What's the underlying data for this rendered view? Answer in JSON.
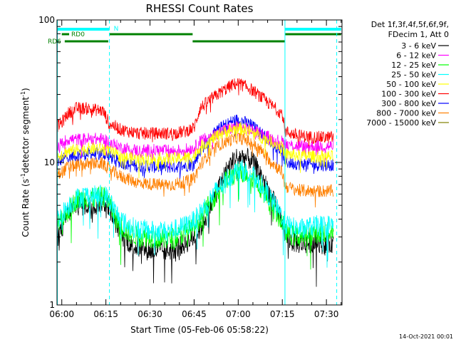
{
  "chart_data": {
    "type": "line",
    "title": "RHESSI Count Rates",
    "xlabel": "Start Time (05-Feb-06 05:58:22)",
    "ylabel": "Count Rate (s⁻¹ detector segment⁻¹)",
    "ylabel_main": "Count Rate (s",
    "ylabel_mid": "detector segment",
    "ylabel_end": ")",
    "ylabel_sup": "-1",
    "x_unit": "minutes UT",
    "xlim": [
      358.37,
      455.3
    ],
    "ylim": [
      1,
      100
    ],
    "yscale": "log",
    "x_ticks": [
      {
        "value": 360,
        "label": "06:00"
      },
      {
        "value": 375,
        "label": "06:15"
      },
      {
        "value": 390,
        "label": "06:30"
      },
      {
        "value": 405,
        "label": "06:45"
      },
      {
        "value": 420,
        "label": "07:00"
      },
      {
        "value": 435,
        "label": "07:15"
      },
      {
        "value": 450,
        "label": "07:30"
      }
    ],
    "y_ticks": [
      {
        "value": 1,
        "label": "1"
      },
      {
        "value": 10,
        "label": "10"
      },
      {
        "value": 100,
        "label": "100"
      }
    ],
    "legend": {
      "placement": "right",
      "header": [
        "Det 1f,3f,4f,5f,6f,9f,",
        "FDecim 1, Att 0"
      ]
    },
    "series": [
      {
        "name": "3 - 6 keV",
        "color": "#000000",
        "x": [
          358.5,
          360,
          362,
          365,
          368,
          371,
          374,
          376,
          378,
          381,
          384,
          387,
          390,
          393,
          396,
          399,
          402,
          405,
          407,
          410,
          413,
          416,
          419,
          421,
          424,
          427,
          430,
          433,
          435,
          436,
          438,
          441,
          444,
          447,
          450,
          452.5
        ],
        "values": [
          3.0,
          3.4,
          4.4,
          5.0,
          5.0,
          5.0,
          5.3,
          5.0,
          3.9,
          3.0,
          2.6,
          2.5,
          2.4,
          2.4,
          2.4,
          2.5,
          2.7,
          3.0,
          3.4,
          4.6,
          6.5,
          8.7,
          10.8,
          11.0,
          10.5,
          8.8,
          6.5,
          4.8,
          4.0,
          3.1,
          2.8,
          2.7,
          2.7,
          2.8,
          2.6,
          2.8
        ]
      },
      {
        "name": "6 - 12 keV",
        "color": "#ff00ff",
        "x": [
          358.5,
          362,
          366,
          370,
          374,
          376,
          380,
          386,
          392,
          398,
          402,
          405,
          407,
          410,
          414,
          418,
          420,
          424,
          428,
          432,
          435,
          436,
          440,
          446,
          452.5
        ],
        "values": [
          13.0,
          14.5,
          14.5,
          14.7,
          14.5,
          13.8,
          12.7,
          12.1,
          12.2,
          12.0,
          12.3,
          12.6,
          14.0,
          15.0,
          16.5,
          17.5,
          17.8,
          17.0,
          15.8,
          14.5,
          14.0,
          13.5,
          13.0,
          13.0,
          13.0
        ]
      },
      {
        "name": "12 - 25 keV",
        "color": "#00ff00",
        "x": [
          358.5,
          360,
          362,
          365,
          368,
          371,
          374,
          376,
          378,
          381,
          384,
          387,
          390,
          393,
          396,
          399,
          402,
          405,
          407,
          410,
          413,
          416,
          419,
          421,
          424,
          427,
          430,
          433,
          435,
          436,
          438,
          441,
          444,
          447,
          450,
          452.5
        ],
        "values": [
          3.6,
          3.9,
          4.5,
          5.5,
          5.6,
          5.6,
          5.8,
          5.3,
          4.2,
          3.4,
          3.1,
          3.0,
          3.0,
          2.9,
          2.9,
          3.0,
          3.2,
          3.5,
          4.0,
          5.0,
          6.2,
          7.5,
          8.3,
          8.6,
          8.2,
          7.0,
          5.6,
          4.4,
          3.8,
          3.3,
          3.1,
          3.0,
          3.1,
          3.2,
          3.2,
          3.4
        ]
      },
      {
        "name": "25 - 50 keV",
        "color": "#00ffff",
        "x": [
          358.5,
          360,
          362,
          365,
          368,
          371,
          374,
          376,
          378,
          381,
          384,
          387,
          390,
          393,
          396,
          399,
          402,
          405,
          407,
          410,
          413,
          416,
          419,
          421,
          424,
          427,
          430,
          433,
          435,
          436,
          438,
          441,
          444,
          447,
          450,
          452.5
        ],
        "values": [
          4.0,
          4.3,
          4.9,
          5.6,
          5.9,
          5.8,
          6.0,
          5.6,
          4.6,
          3.8,
          3.5,
          3.4,
          3.3,
          3.3,
          3.3,
          3.4,
          3.6,
          3.9,
          4.4,
          5.4,
          6.5,
          7.7,
          8.6,
          8.9,
          8.4,
          7.4,
          6.0,
          4.8,
          4.2,
          3.7,
          3.5,
          3.4,
          3.5,
          3.6,
          3.6,
          3.7
        ]
      },
      {
        "name": "50 - 100 keV",
        "color": "#ffff00",
        "x": [
          358.5,
          362,
          366,
          370,
          374,
          376,
          380,
          386,
          392,
          398,
          402,
          405,
          407,
          410,
          414,
          418,
          420,
          424,
          428,
          432,
          435,
          436,
          440,
          446,
          452.5
        ],
        "values": [
          11.0,
          12.0,
          12.3,
          12.5,
          12.5,
          12.0,
          11.0,
          10.5,
          10.6,
          10.6,
          10.8,
          11.0,
          12.8,
          14.0,
          16.0,
          17.0,
          17.5,
          16.5,
          15.0,
          13.8,
          12.8,
          11.5,
          11.2,
          11.0,
          11.0
        ]
      },
      {
        "name": "100 - 300 keV",
        "color": "#ff0000",
        "x": [
          358.5,
          360,
          362,
          365,
          368,
          371,
          374,
          376,
          380,
          386,
          392,
          398,
          402,
          405,
          407,
          410,
          414,
          418,
          420,
          424,
          428,
          432,
          435,
          436,
          440,
          446,
          452.5
        ],
        "values": [
          18.0,
          19.0,
          22.0,
          24.0,
          24.0,
          23.5,
          23.0,
          19.0,
          17.0,
          16.0,
          16.0,
          16.0,
          16.5,
          17.5,
          24.0,
          27.0,
          31.0,
          35.0,
          36.0,
          33.0,
          28.5,
          24.5,
          22.0,
          16.5,
          15.5,
          15.0,
          15.0
        ]
      },
      {
        "name": "300 - 800 keV",
        "color": "#0000ff",
        "x": [
          358.5,
          362,
          366,
          370,
          374,
          376,
          380,
          386,
          392,
          398,
          402,
          405,
          407,
          410,
          414,
          418,
          420,
          424,
          428,
          432,
          435,
          436,
          440,
          446,
          452.5
        ],
        "values": [
          10.0,
          11.0,
          11.3,
          11.5,
          11.5,
          11.0,
          10.0,
          9.4,
          9.3,
          9.3,
          9.5,
          9.8,
          12.0,
          14.5,
          17.5,
          19.5,
          20.0,
          18.5,
          16.0,
          13.5,
          12.0,
          10.0,
          9.8,
          9.6,
          9.6
        ]
      },
      {
        "name": "800 - 7000 keV",
        "color": "#ff8000",
        "x": [
          358.5,
          362,
          366,
          370,
          374,
          376,
          380,
          386,
          392,
          398,
          402,
          405,
          407,
          410,
          414,
          418,
          420,
          424,
          428,
          432,
          435,
          436,
          440,
          446,
          452.5
        ],
        "values": [
          8.0,
          9.3,
          9.6,
          9.8,
          9.8,
          9.0,
          8.0,
          7.2,
          7.0,
          7.0,
          7.3,
          7.7,
          9.5,
          11.5,
          13.5,
          14.5,
          15.0,
          14.0,
          12.0,
          9.8,
          8.5,
          6.8,
          6.4,
          6.3,
          6.3
        ]
      },
      {
        "name": "7000 - 15000 keV",
        "color": "#808000",
        "x": [],
        "values": []
      }
    ],
    "attenuator_bars": [
      {
        "label": "",
        "color": "#00ffff",
        "x0": 358.4,
        "x1": 376.2,
        "y": 86
      },
      {
        "label": "N",
        "color": "#00ffff",
        "x0": 376.2,
        "x1": 376.2,
        "y": 86
      },
      {
        "label": "",
        "color": "#00ffff",
        "x0": 436.0,
        "x1": 455.0,
        "y": 86
      }
    ],
    "rd_bars": [
      {
        "label": "RD0",
        "color": "#008000",
        "segments": [
          [
            360,
            362.5
          ],
          [
            376.2,
            404.5
          ],
          [
            436.0,
            455.0
          ]
        ]
      },
      {
        "label": "RD6",
        "color": "#008000",
        "segments": [
          [
            361,
            375.8
          ],
          [
            404.5,
            435.8
          ]
        ]
      }
    ],
    "vlines": [
      {
        "x": 358.5,
        "style": "solid",
        "color": "#00ffff"
      },
      {
        "x": 376.2,
        "style": "dashed",
        "color": "#00ffff"
      },
      {
        "x": 435.9,
        "style": "solid",
        "color": "#00ffff"
      },
      {
        "x": 453.5,
        "style": "dashed",
        "color": "#00ffff"
      }
    ],
    "footer": "14-Oct-2021 00:01",
    "grid": false
  }
}
